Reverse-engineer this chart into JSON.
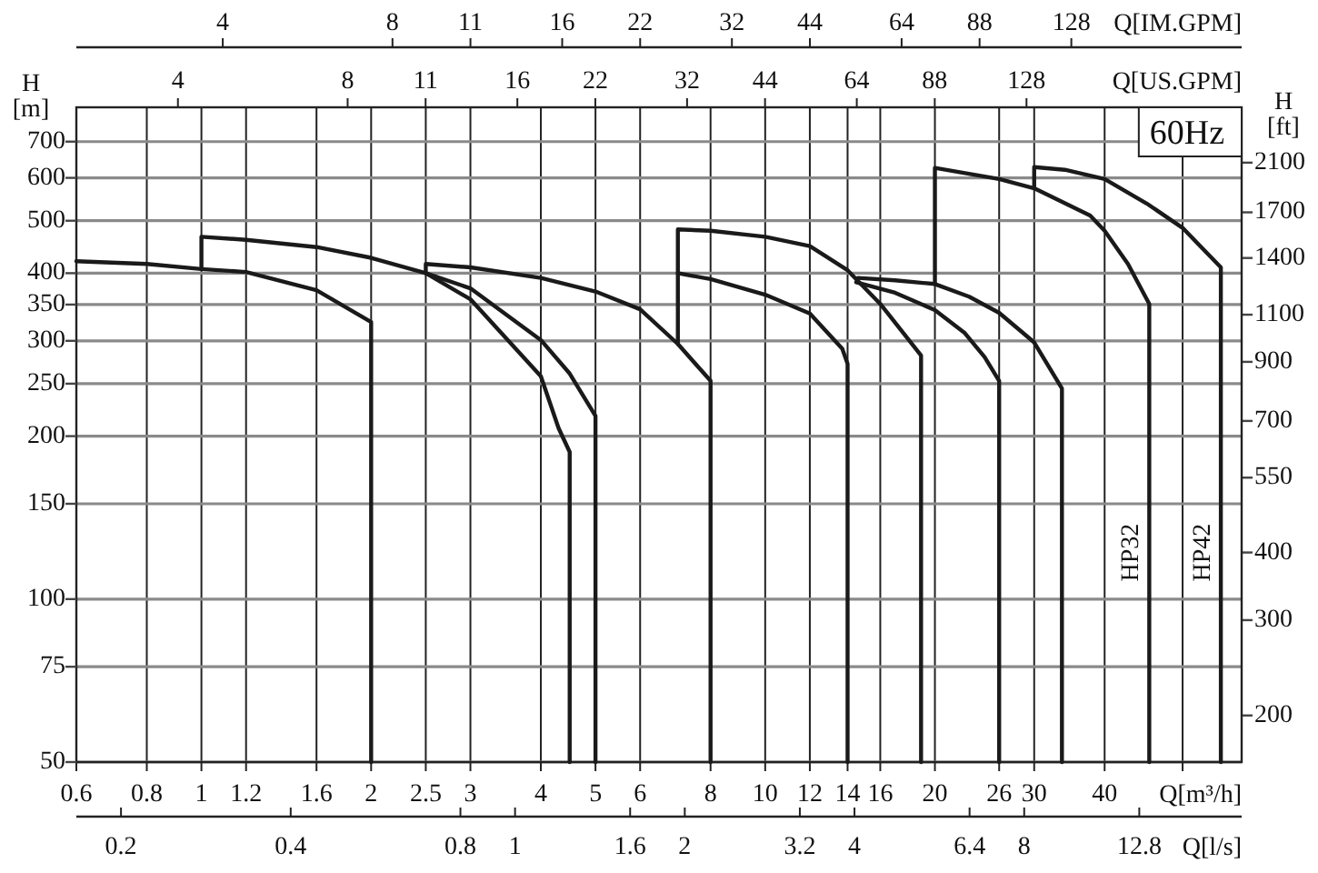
{
  "chart_data": [
    {
      "type": "line",
      "xlabel": "Q[IM.GPM]",
      "log": "xy",
      "tick_labels": "x",
      "xlim": [
        2.1997,
        256.63
      ],
      "xticks": [
        4,
        8,
        11,
        16,
        22,
        32,
        44,
        64,
        88,
        128
      ],
      "ylim": [
        50,
        810
      ]
    },
    {
      "type": "line",
      "xlabel": "Q[US.GPM]",
      "ylabel": "H [ft]",
      "log": "xy",
      "xlim": [
        2.6417,
        308.2
      ],
      "xticks": [
        4,
        8,
        11,
        16,
        22,
        32,
        44,
        64,
        88,
        128
      ],
      "ylim": [
        164.04,
        2657.5
      ],
      "yticks": [
        200,
        300,
        400,
        550,
        700,
        900,
        1100,
        1400,
        1700,
        2100
      ]
    },
    {
      "type": "line",
      "xlabel": "Q[m³/h]",
      "ylabel": "H [m]",
      "log": "xy",
      "grid": true,
      "xlim": [
        0.6,
        70
      ],
      "xticks": [
        0.6,
        0.8,
        1,
        1.2,
        1.6,
        2,
        2.5,
        3,
        4,
        5,
        6,
        8,
        10,
        12,
        14,
        16,
        20,
        26,
        30,
        40,
        {
          "value": 55,
          "label": null
        }
      ],
      "ylim": [
        50,
        810
      ],
      "yticks": [
        50,
        75,
        100,
        150,
        200,
        250,
        300,
        350,
        400,
        500,
        600,
        700
      ],
      "annotations": [
        "60Hz"
      ],
      "series": [
        {
          "color": "#1a1a1a",
          "x": [
            0.6,
            0.8,
            1,
            1.2,
            1.6,
            2,
            2
          ],
          "values": [
            421,
            416,
            407,
            402,
            372,
            325,
            50
          ]
        },
        {
          "color": "#1a1a1a",
          "x": [
            1,
            1,
            1.2,
            1.6,
            2,
            2.5,
            3,
            4,
            4.3,
            4.5,
            4.5
          ],
          "values": [
            407,
            467,
            461,
            447,
            427,
            400,
            358,
            258,
            207,
            187,
            50
          ]
        },
        {
          "color": "#1a1a1a",
          "x": [
            2.5,
            3,
            4,
            4.5,
            5,
            5
          ],
          "values": [
            400,
            375,
            301,
            261,
            218,
            50
          ]
        },
        {
          "color": "#1a1a1a",
          "x": [
            2.5,
            2.5,
            3,
            4,
            5,
            6,
            7,
            8,
            8
          ],
          "values": [
            400,
            416,
            410,
            392,
            370,
            343,
            296,
            253,
            50
          ]
        },
        {
          "color": "#1a1a1a",
          "x": [
            7,
            7,
            8,
            10,
            12,
            14,
            16,
            18.9,
            18.9
          ],
          "values": [
            296,
            482,
            479,
            467,
            449,
            405,
            351,
            282,
            50
          ]
        },
        {
          "color": "#1a1a1a",
          "x": [
            7,
            8,
            10,
            12,
            13.7,
            14,
            14
          ],
          "values": [
            400,
            390,
            365,
            337,
            290,
            272,
            50
          ]
        },
        {
          "color": "#1a1a1a",
          "x": [
            14.5,
            17,
            20,
            22.6,
            24.5,
            26,
            26
          ],
          "values": [
            385,
            368,
            342,
            310,
            280,
            253,
            50
          ]
        },
        {
          "color": "#1a1a1a",
          "x": [
            14.6,
            17,
            20,
            23,
            26,
            30,
            33.6,
            33.6
          ],
          "values": [
            392,
            388,
            382,
            362,
            338,
            298,
            245,
            50
          ]
        },
        {
          "name": "HP32",
          "color": "#1a1a1a",
          "x": [
            20,
            20,
            26,
            30,
            37.7,
            40,
            44,
            48,
            48
          ],
          "values": [
            382,
            626,
            597,
            574,
            511,
            479,
            416,
            351,
            50
          ]
        },
        {
          "name": "HP42",
          "color": "#1a1a1a",
          "x": [
            30,
            30,
            34,
            40,
            47.5,
            55,
            64.3,
            64.3
          ],
          "values": [
            574,
            628,
            621,
            597,
            538,
            485,
            410,
            50
          ]
        }
      ]
    },
    {
      "type": "line",
      "xlabel": "Q[l/s]",
      "log": "xy",
      "tick_labels": "x",
      "xlim": [
        0.16667,
        19.444
      ],
      "xticks": [
        0.2,
        0.4,
        0.8,
        1,
        1.6,
        2,
        3.2,
        4,
        6.4,
        8,
        12.8
      ],
      "ylim": [
        50,
        810
      ]
    }
  ]
}
